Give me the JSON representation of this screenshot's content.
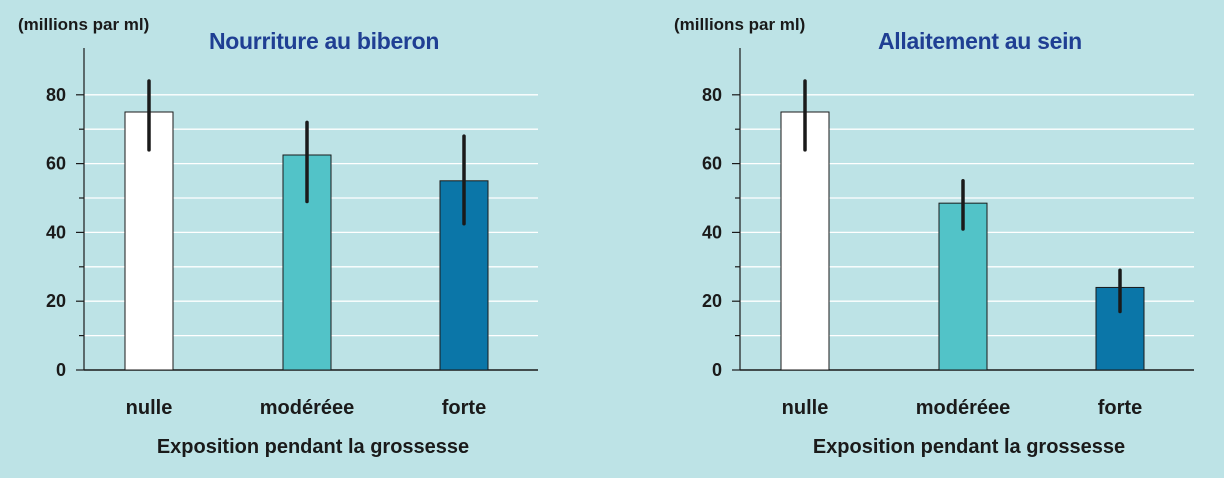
{
  "chart_data": [
    {
      "type": "bar",
      "title": "Nourriture au biberon",
      "unit_label": "(millions par ml)",
      "xlabel": "Exposition pendant la grossesse",
      "ylabel": "",
      "categories": [
        "nulle",
        "modéréee",
        "forte"
      ],
      "values": [
        75,
        62.5,
        55
      ],
      "error_low": [
        64,
        49,
        42.5
      ],
      "error_high": [
        84,
        72,
        68
      ],
      "ylim": [
        0,
        92
      ],
      "yticks": [
        0,
        20,
        40,
        60,
        80
      ],
      "grid": true,
      "colors": [
        "#ffffff",
        "#52c3c8",
        "#0b76a8"
      ]
    },
    {
      "type": "bar",
      "title": "Allaitement au sein",
      "unit_label": "(millions par ml)",
      "xlabel": "Exposition pendant la grossesse",
      "ylabel": "",
      "categories": [
        "nulle",
        "modéréee",
        "forte"
      ],
      "values": [
        75,
        48.5,
        24
      ],
      "error_low": [
        64,
        41,
        17
      ],
      "error_high": [
        84,
        55,
        29
      ],
      "ylim": [
        0,
        92
      ],
      "yticks": [
        0,
        20,
        40,
        60,
        80
      ],
      "grid": true,
      "colors": [
        "#ffffff",
        "#52c3c8",
        "#0b76a8"
      ]
    }
  ],
  "colors": {
    "background": "#bde3e6",
    "title": "#1f3f93",
    "gridline": "#ffffff",
    "axis": "#1a1a1a"
  }
}
